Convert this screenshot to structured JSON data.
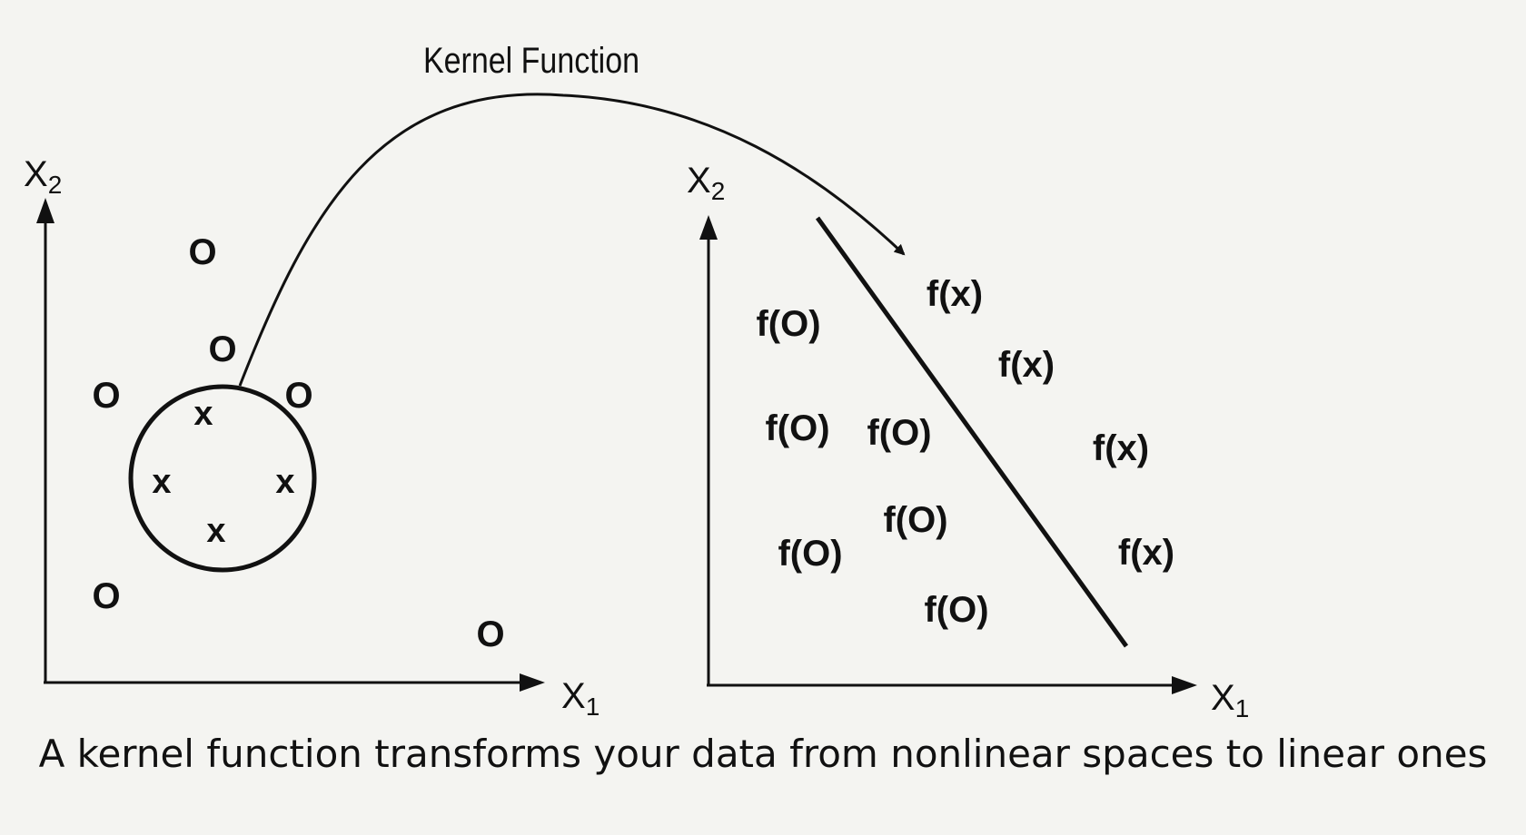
{
  "title": "Kernel Function",
  "caption": "A kernel function transforms your data from nonlinear spaces to linear ones",
  "left_plot": {
    "x_axis_label": "X",
    "x_axis_sub": "1",
    "y_axis_label": "X",
    "y_axis_sub": "2",
    "o_label": "O",
    "x_label": "x"
  },
  "right_plot": {
    "x_axis_label": "X",
    "x_axis_sub": "1",
    "y_axis_label": "X",
    "y_axis_sub": "2",
    "fo_label": "f(O)",
    "fx_label": "f(x)"
  },
  "colors": {
    "ink": "#111111",
    "paper": "#f4f4f1"
  }
}
